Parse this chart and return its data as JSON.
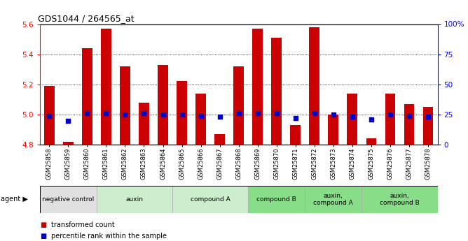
{
  "title": "GDS1044 / 264565_at",
  "samples": [
    "GSM25858",
    "GSM25859",
    "GSM25860",
    "GSM25861",
    "GSM25862",
    "GSM25863",
    "GSM25864",
    "GSM25865",
    "GSM25866",
    "GSM25867",
    "GSM25868",
    "GSM25869",
    "GSM25870",
    "GSM25871",
    "GSM25872",
    "GSM25873",
    "GSM25874",
    "GSM25875",
    "GSM25876",
    "GSM25877",
    "GSM25878"
  ],
  "bar_values": [
    5.19,
    4.82,
    5.44,
    5.57,
    5.32,
    5.08,
    5.33,
    5.22,
    5.14,
    4.87,
    5.32,
    5.57,
    5.51,
    4.93,
    5.58,
    5.0,
    5.14,
    4.84,
    5.14,
    5.07,
    5.05
  ],
  "percentile_values": [
    24,
    20,
    26,
    26,
    25,
    26,
    25,
    25,
    24,
    23,
    26,
    26,
    26,
    22,
    26,
    25,
    23,
    21,
    25,
    24,
    23
  ],
  "bar_color": "#cc0000",
  "percentile_color": "#0000cc",
  "ylim": [
    4.8,
    5.6
  ],
  "yticks_left": [
    4.8,
    5.0,
    5.2,
    5.4,
    5.6
  ],
  "yticks_right": [
    0,
    25,
    50,
    75,
    100
  ],
  "ytick_labels_right": [
    "0",
    "25",
    "50",
    "75",
    "100%"
  ],
  "agent_groups": [
    {
      "label": "negative control",
      "start": 0,
      "end": 3,
      "color": "#e0e0e0"
    },
    {
      "label": "auxin",
      "start": 3,
      "end": 7,
      "color": "#cceecc"
    },
    {
      "label": "compound A",
      "start": 7,
      "end": 11,
      "color": "#cceecc"
    },
    {
      "label": "compound B",
      "start": 11,
      "end": 14,
      "color": "#88dd88"
    },
    {
      "label": "auxin,\ncompound A",
      "start": 14,
      "end": 17,
      "color": "#88dd88"
    },
    {
      "label": "auxin,\ncompound B",
      "start": 17,
      "end": 21,
      "color": "#88dd88"
    }
  ],
  "legend_items": [
    {
      "label": "transformed count",
      "color": "#cc0000"
    },
    {
      "label": "percentile rank within the sample",
      "color": "#0000cc"
    }
  ],
  "bar_width": 0.55
}
